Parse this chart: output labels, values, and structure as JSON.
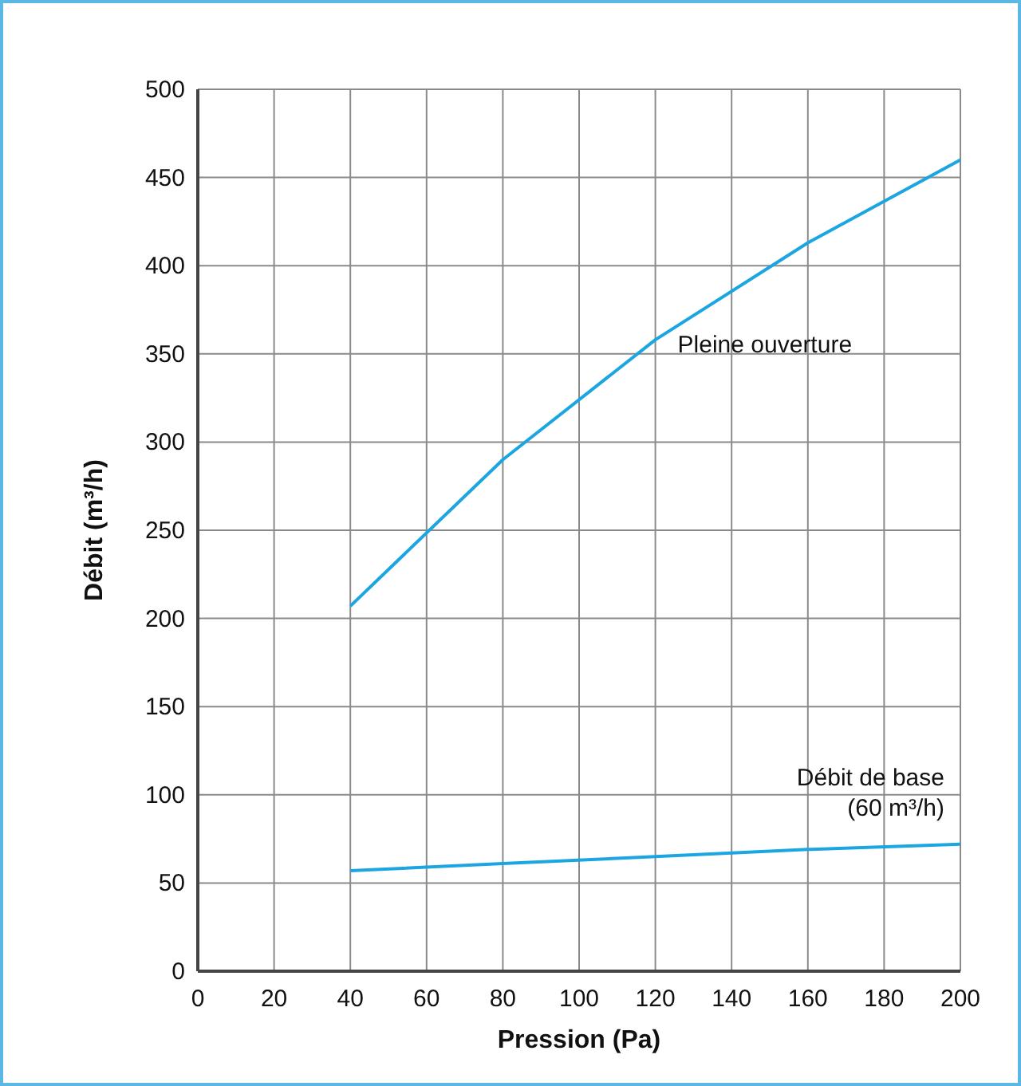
{
  "chart_data": {
    "type": "line",
    "xlabel": "Pression (Pa)",
    "ylabel": "Débit (m³/h)",
    "x": [
      40,
      80,
      120,
      160,
      200
    ],
    "series": [
      {
        "name": "Pleine ouverture",
        "color": "#1ba6e2",
        "values": [
          207,
          290,
          358,
          413,
          460
        ]
      },
      {
        "name": "Débit de base\n(60 m³/h)",
        "color": "#1ba6e2",
        "values": [
          57,
          61,
          65,
          69,
          72
        ]
      }
    ],
    "xlim": [
      0,
      200
    ],
    "xticks": [
      0,
      20,
      40,
      60,
      80,
      100,
      120,
      140,
      160,
      180,
      200
    ],
    "ylim": [
      0,
      500
    ],
    "yticks": [
      0,
      50,
      100,
      150,
      200,
      250,
      300,
      350,
      400,
      450,
      500
    ],
    "grid": true,
    "marker": "none",
    "line_style": "solid"
  }
}
